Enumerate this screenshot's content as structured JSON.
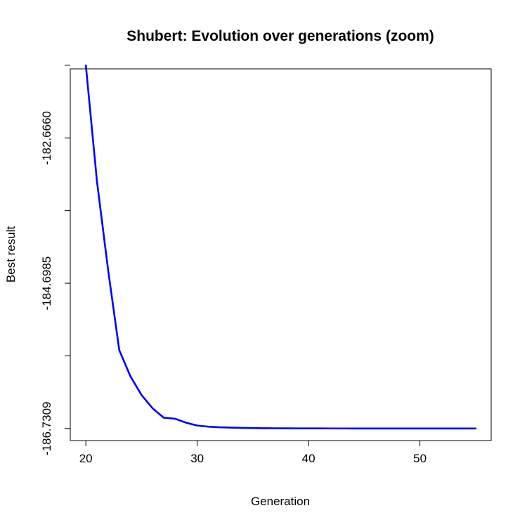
{
  "chart_data": {
    "type": "line",
    "title": "Shubert: Evolution over generations (zoom)",
    "xlabel": "Generation",
    "ylabel": "Best result",
    "xlim": [
      18.6,
      56.4
    ],
    "ylim": [
      -186.9,
      -181.7
    ],
    "x_ticks": [
      20,
      30,
      40,
      50
    ],
    "x_tick_labels": [
      "20",
      "30",
      "40",
      "50"
    ],
    "y_ticks": [
      -186.7309,
      -185.7147,
      -184.6985,
      -183.6823,
      -182.666,
      -181.6498
    ],
    "y_tick_labels": [
      "-186.7309",
      "",
      "-184.6985",
      "",
      "-182.6660",
      ""
    ],
    "grid": false,
    "legend": "none",
    "series": [
      {
        "color": "#0000ff",
        "x": [
          20,
          21,
          22,
          23,
          24,
          25,
          26,
          27,
          28,
          29,
          30,
          31,
          32,
          33,
          34,
          35,
          36,
          37,
          38,
          39,
          40,
          41,
          42,
          43,
          44,
          45,
          46,
          47,
          48,
          49,
          50,
          51,
          52,
          53,
          54,
          55
        ],
        "values": [
          -181.652,
          -183.277,
          -184.515,
          -185.634,
          -186.0,
          -186.263,
          -186.45,
          -186.58,
          -186.594,
          -186.65,
          -186.69,
          -186.705,
          -186.714,
          -186.719,
          -186.722,
          -186.725,
          -186.727,
          -186.728,
          -186.729,
          -186.7295,
          -186.73,
          -186.7302,
          -186.7304,
          -186.7305,
          -186.7306,
          -186.7307,
          -186.7307,
          -186.7308,
          -186.7308,
          -186.7308,
          -186.7309,
          -186.7309,
          -186.7309,
          -186.7309,
          -186.7309,
          -186.7309
        ]
      }
    ]
  }
}
